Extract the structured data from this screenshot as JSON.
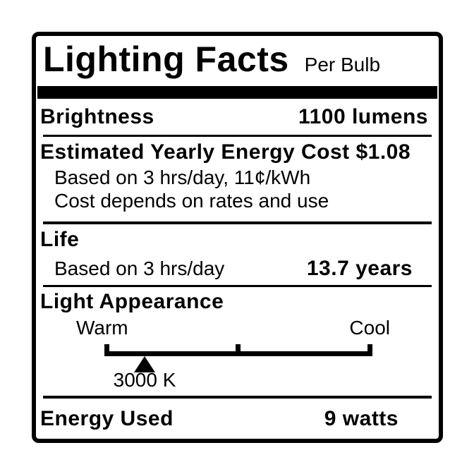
{
  "label": {
    "title": "Lighting Facts",
    "subtitle": "Per Bulb",
    "brightness": {
      "label": "Brightness",
      "value": "1100 lumens"
    },
    "energy_cost": {
      "heading": "Estimated Yearly Energy Cost $1.08",
      "basis": "Based on 3 hrs/day, 11¢/kWh",
      "note": "Cost depends on rates and use"
    },
    "life": {
      "heading": "Life",
      "basis": "Based on 3 hrs/day",
      "value": "13.7 years"
    },
    "light_appearance": {
      "heading": "Light Appearance",
      "warm_label": "Warm",
      "cool_label": "Cool",
      "temperature": "3000 K",
      "marker_position_pct": 15
    },
    "energy_used": {
      "label": "Energy Used",
      "value": "9 watts"
    },
    "colors": {
      "ink": "#000000",
      "background": "#ffffff"
    }
  }
}
